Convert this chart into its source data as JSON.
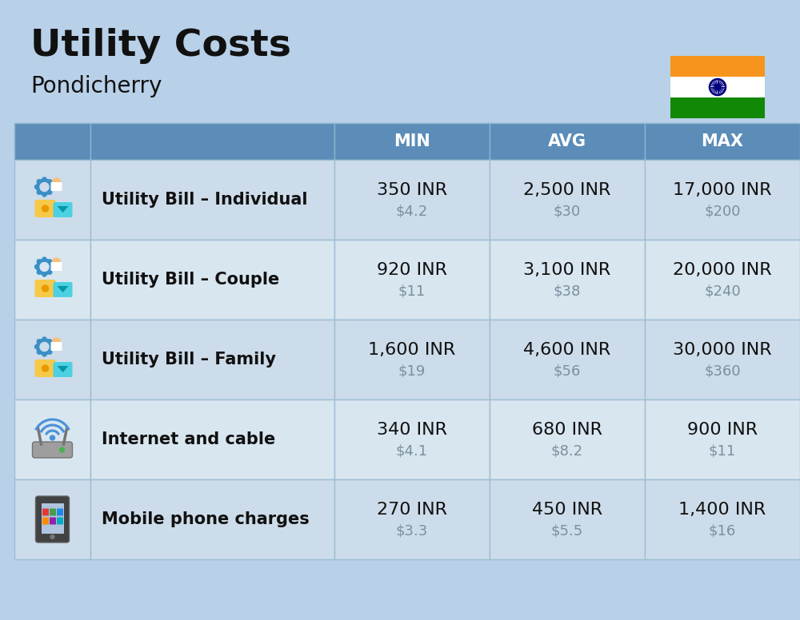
{
  "title": "Utility Costs",
  "subtitle": "Pondicherry",
  "background_color": "#b8d0e8",
  "header_bg_color": "#5b8db8",
  "header_text_color": "#ffffff",
  "columns": [
    "MIN",
    "AVG",
    "MAX"
  ],
  "rows": [
    {
      "label": "Utility Bill – Individual",
      "min_inr": "350 INR",
      "min_usd": "$4.2",
      "avg_inr": "2,500 INR",
      "avg_usd": "$30",
      "max_inr": "17,000 INR",
      "max_usd": "$200"
    },
    {
      "label": "Utility Bill – Couple",
      "min_inr": "920 INR",
      "min_usd": "$11",
      "avg_inr": "3,100 INR",
      "avg_usd": "$38",
      "max_inr": "20,000 INR",
      "max_usd": "$240"
    },
    {
      "label": "Utility Bill – Family",
      "min_inr": "1,600 INR",
      "min_usd": "$19",
      "avg_inr": "4,600 INR",
      "avg_usd": "$56",
      "max_inr": "30,000 INR",
      "max_usd": "$360"
    },
    {
      "label": "Internet and cable",
      "min_inr": "340 INR",
      "min_usd": "$4.1",
      "avg_inr": "680 INR",
      "avg_usd": "$8.2",
      "max_inr": "900 INR",
      "max_usd": "$11"
    },
    {
      "label": "Mobile phone charges",
      "min_inr": "270 INR",
      "min_usd": "$3.3",
      "avg_inr": "450 INR",
      "avg_usd": "$5.5",
      "max_inr": "1,400 INR",
      "max_usd": "$16"
    }
  ],
  "title_fontsize": 34,
  "subtitle_fontsize": 20,
  "header_fontsize": 15,
  "label_fontsize": 15,
  "value_fontsize": 16,
  "usd_fontsize": 13,
  "row_colors": [
    "#cddcea",
    "#d8e6f0"
  ]
}
